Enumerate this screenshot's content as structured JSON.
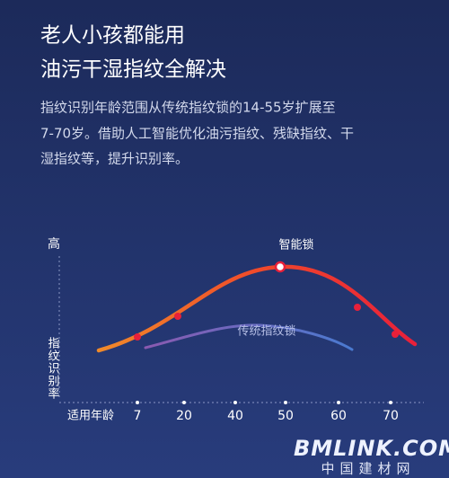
{
  "header": {
    "title_lines": [
      "老人小孩都能用",
      "油污干湿指纹全解决"
    ]
  },
  "description": [
    "指纹识别年龄范围从传统指纹锁的14-55岁扩展至",
    "7-70岁。借助人工智能优化油污指纹、残缺指纹、干",
    "湿指纹等，提升识别率。"
  ],
  "chart": {
    "y_axis_top": "高",
    "y_axis_label": [
      "指",
      "纹",
      "识",
      "别",
      "率"
    ],
    "x_axis_label": "适用年龄",
    "x_ticks": [
      "7",
      "20",
      "40",
      "50",
      "60",
      "70"
    ],
    "smart_lock_label": "智能锁",
    "traditional_lock_label": "传统指纹锁"
  },
  "watermark": {
    "brand": "BMLINK.COM",
    "subtitle": "中国建材网"
  }
}
